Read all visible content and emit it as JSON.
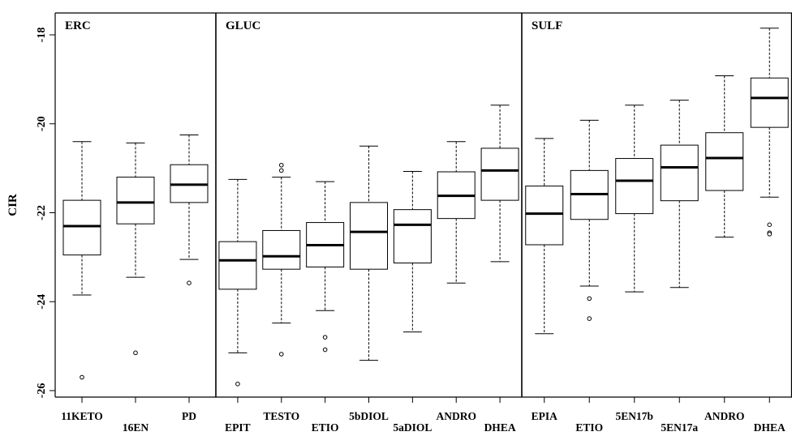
{
  "chart_data": {
    "type": "boxplot",
    "ylabel": "CIR",
    "ylim": [
      -26.2,
      -17.4
    ],
    "yticks": [
      -18,
      -20,
      -22,
      -24,
      -26
    ],
    "grid": false,
    "panels": [
      {
        "title": "ERC",
        "boxes": [
          {
            "label": "11KETO",
            "label_row": "upper",
            "min": -23.85,
            "q1": -22.95,
            "median": -22.3,
            "q3": -21.72,
            "max": -20.4,
            "outliers": [
              -25.7
            ]
          },
          {
            "label": "16EN",
            "label_row": "lower",
            "min": -23.45,
            "q1": -22.25,
            "median": -21.77,
            "q3": -21.2,
            "max": -20.43,
            "outliers": [
              -25.15
            ]
          },
          {
            "label": "PD",
            "label_row": "upper",
            "min": -23.05,
            "q1": -21.77,
            "median": -21.37,
            "q3": -20.92,
            "max": -20.25,
            "outliers": [
              -23.58
            ]
          }
        ]
      },
      {
        "title": "GLUC",
        "boxes": [
          {
            "label": "EPIT",
            "label_row": "lower",
            "min": -25.15,
            "q1": -23.72,
            "median": -23.07,
            "q3": -22.65,
            "max": -21.25,
            "outliers": [
              -25.85
            ]
          },
          {
            "label": "TESTO",
            "label_row": "upper",
            "min": -24.48,
            "q1": -23.27,
            "median": -22.98,
            "q3": -22.4,
            "max": -21.2,
            "outliers": [
              -25.18,
              -20.93,
              -21.05
            ]
          },
          {
            "label": "ETIO",
            "label_row": "lower",
            "min": -24.2,
            "q1": -23.22,
            "median": -22.73,
            "q3": -22.22,
            "max": -21.3,
            "outliers": [
              -24.8,
              -25.08
            ]
          },
          {
            "label": "5bDIOL",
            "label_row": "upper",
            "min": -25.32,
            "q1": -23.27,
            "median": -22.43,
            "q3": -21.77,
            "max": -20.5,
            "outliers": []
          },
          {
            "label": "5aDIOL",
            "label_row": "lower",
            "min": -24.68,
            "q1": -23.13,
            "median": -22.27,
            "q3": -21.93,
            "max": -21.07,
            "outliers": []
          },
          {
            "label": "ANDRO",
            "label_row": "upper",
            "min": -23.58,
            "q1": -22.13,
            "median": -21.62,
            "q3": -21.08,
            "max": -20.4,
            "outliers": []
          },
          {
            "label": "DHEA",
            "label_row": "lower",
            "min": -23.1,
            "q1": -21.72,
            "median": -21.05,
            "q3": -20.55,
            "max": -19.58,
            "outliers": []
          }
        ]
      },
      {
        "title": "SULF",
        "boxes": [
          {
            "label": "EPIA",
            "label_row": "upper",
            "min": -24.72,
            "q1": -22.72,
            "median": -22.02,
            "q3": -21.4,
            "max": -20.33,
            "outliers": []
          },
          {
            "label": "ETIO",
            "label_row": "lower",
            "min": -23.65,
            "q1": -22.15,
            "median": -21.58,
            "q3": -21.05,
            "max": -19.92,
            "outliers": [
              -23.93,
              -24.38
            ]
          },
          {
            "label": "5EN17b",
            "label_row": "upper",
            "min": -23.78,
            "q1": -22.02,
            "median": -21.28,
            "q3": -20.78,
            "max": -19.58,
            "outliers": []
          },
          {
            "label": "5EN17a",
            "label_row": "lower",
            "min": -23.68,
            "q1": -21.73,
            "median": -20.98,
            "q3": -20.48,
            "max": -19.47,
            "outliers": []
          },
          {
            "label": "ANDRO",
            "label_row": "upper",
            "min": -22.55,
            "q1": -21.5,
            "median": -20.77,
            "q3": -20.2,
            "max": -18.92,
            "outliers": []
          },
          {
            "label": "DHEA",
            "label_row": "lower",
            "min": -21.65,
            "q1": -20.08,
            "median": -19.42,
            "q3": -18.97,
            "max": -17.85,
            "outliers": [
              -22.27,
              -22.45,
              -22.48
            ]
          }
        ]
      }
    ]
  }
}
